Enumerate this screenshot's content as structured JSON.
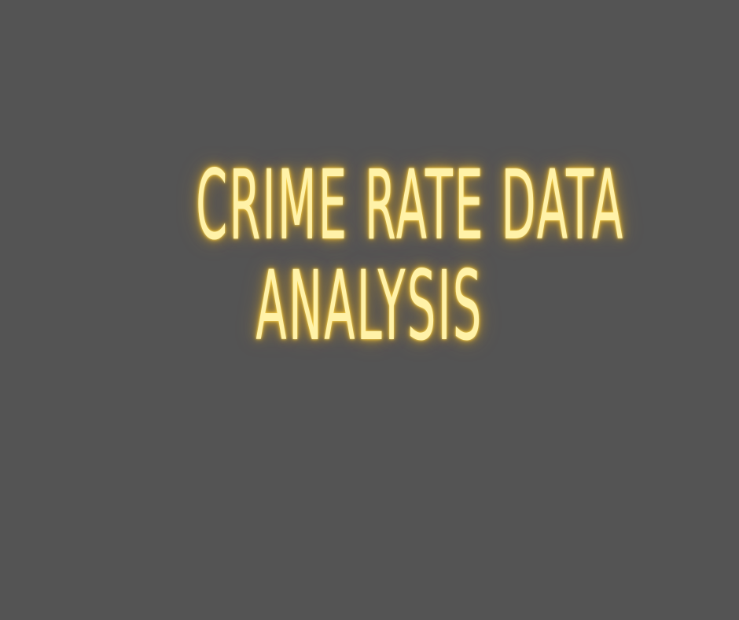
{
  "title": {
    "line1": "CRIME RATE DATA",
    "line2": "ANALYSIS"
  },
  "colors": {
    "background": "#545454",
    "text": "#fff2a8",
    "glow": "#ffc81f"
  }
}
